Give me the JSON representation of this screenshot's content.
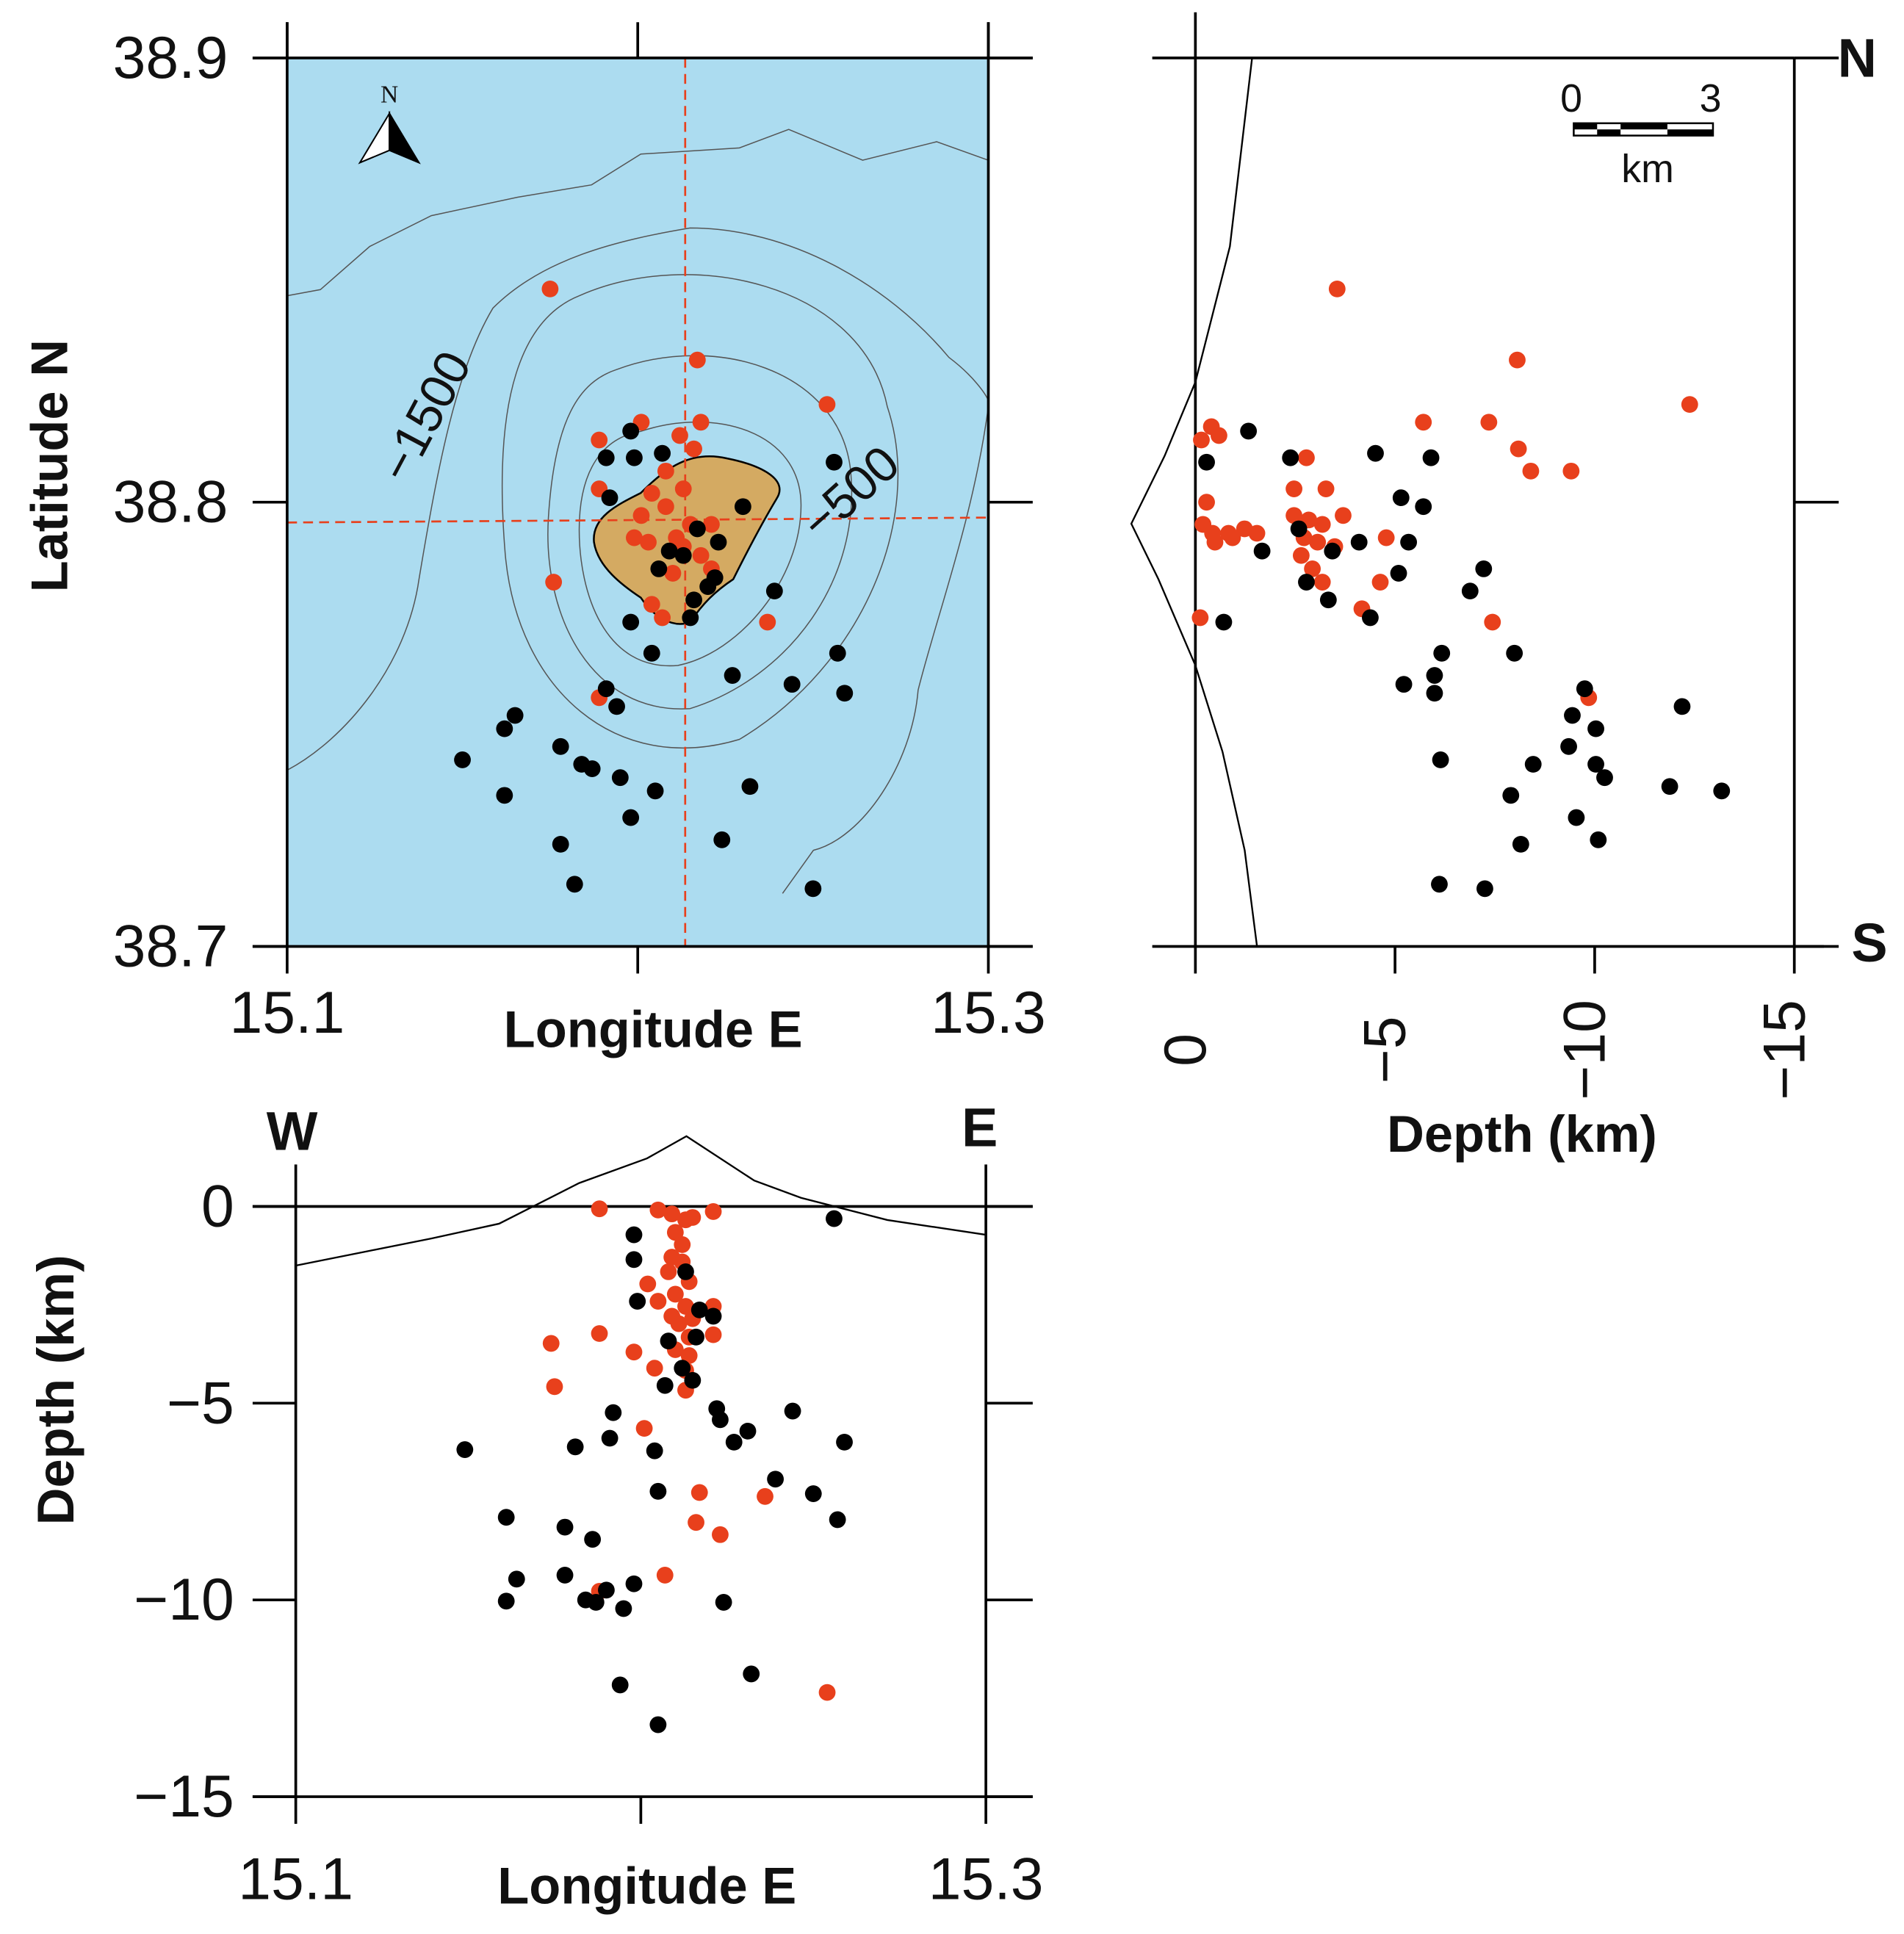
{
  "chart_data": [
    {
      "type": "scatter",
      "xlabel": "Longitude E",
      "ylabel": "Latitude N",
      "xlim": [
        15.1,
        15.3
      ],
      "ylim": [
        38.7,
        38.9
      ],
      "xticks": [
        15.1,
        {
          "value": 15.2,
          "label": null
        },
        15.3
      ],
      "yticks": [
        38.7,
        38.8,
        38.9
      ],
      "background": "#acdcf0",
      "annotations": [
        "−1500",
        "−500",
        "N"
      ],
      "series": [
        {
          "color": "#e8401c",
          "x": [
            15.175,
            15.217,
            15.254,
            15.189,
            15.201,
            15.212,
            15.216,
            15.218,
            15.208,
            15.189,
            15.204,
            15.213,
            15.208,
            15.201,
            15.215,
            15.221,
            15.211,
            15.203,
            15.199,
            15.213,
            15.218,
            15.221,
            15.21,
            15.176,
            15.204,
            15.207,
            15.237,
            15.189
          ],
          "y": [
            38.848,
            38.832,
            38.822,
            38.814,
            38.818,
            38.815,
            38.812,
            38.818,
            38.807,
            38.803,
            38.802,
            38.803,
            38.799,
            38.797,
            38.795,
            38.795,
            38.792,
            38.791,
            38.792,
            38.79,
            38.788,
            38.785,
            38.784,
            38.782,
            38.777,
            38.774,
            38.773,
            38.756
          ]
        },
        {
          "color": "#000000",
          "x": [
            15.198,
            15.191,
            15.199,
            15.207,
            15.256,
            15.192,
            15.23,
            15.217,
            15.223,
            15.209,
            15.213,
            15.206,
            15.222,
            15.22,
            15.216,
            15.215,
            15.239,
            15.198,
            15.204,
            15.257,
            15.227,
            15.244,
            15.191,
            15.259,
            15.194,
            15.165,
            15.162,
            15.178,
            15.184,
            15.187,
            15.15,
            15.195,
            15.205,
            15.232,
            15.162,
            15.198,
            15.224,
            15.178,
            15.182,
            15.25
          ],
          "y": [
            38.816,
            38.81,
            38.81,
            38.811,
            38.809,
            38.801,
            38.799,
            38.794,
            38.791,
            38.789,
            38.788,
            38.785,
            38.783,
            38.781,
            38.778,
            38.774,
            38.78,
            38.773,
            38.766,
            38.766,
            38.761,
            38.759,
            38.758,
            38.757,
            38.754,
            38.752,
            38.749,
            38.745,
            38.741,
            38.74,
            38.742,
            38.738,
            38.735,
            38.736,
            38.734,
            38.729,
            38.724,
            38.723,
            38.714,
            38.713
          ]
        }
      ]
    },
    {
      "type": "scatter",
      "xlabel": "Depth (km)",
      "xlim": [
        0,
        -15
      ],
      "ylim": [
        38.7,
        38.9
      ],
      "xticks": [
        0,
        {
          "value": -5,
          "label": "−5"
        },
        {
          "value": -10,
          "label": "−10"
        },
        {
          "value": -15,
          "label": "−15"
        }
      ],
      "yticks": [
        38.7,
        38.8,
        38.9
      ],
      "ytick_labels": false,
      "annotations": [
        "N",
        "S",
        "0",
        "3",
        "km"
      ],
      "series": [
        {
          "color": "#e8401c",
          "x": [
            -3.55,
            -8.06,
            -12.38,
            -5.71,
            -7.35,
            -0.4,
            -0.59,
            -0.15,
            -2.78,
            -8.09,
            -8.4,
            -9.41,
            -0.28,
            -2.47,
            -3.27,
            -0.19,
            -0.43,
            -0.83,
            -1.23,
            -1.54,
            -0.49,
            -0.93,
            -2.47,
            -2.84,
            -3.18,
            -3.7,
            -2.72,
            -3.06,
            -3.49,
            -4.78,
            -2.65,
            -2.93,
            -3.18,
            -4.63,
            -0.12,
            -4.17,
            -7.44,
            -9.85
          ],
          "y": [
            38.848,
            38.832,
            38.822,
            38.818,
            38.818,
            38.817,
            38.815,
            38.814,
            38.81,
            38.812,
            38.807,
            38.807,
            38.8,
            38.803,
            38.803,
            38.795,
            38.793,
            38.793,
            38.794,
            38.793,
            38.791,
            38.792,
            38.797,
            38.796,
            38.795,
            38.797,
            38.792,
            38.791,
            38.79,
            38.792,
            38.788,
            38.785,
            38.782,
            38.782,
            38.774,
            38.776,
            38.773,
            38.756
          ]
        },
        {
          "color": "#000000",
          "x": [
            -1.33,
            -0.28,
            -2.38,
            -4.51,
            -5.9,
            -5.15,
            -5.71,
            -2.59,
            -4.1,
            -5.34,
            -1.67,
            -3.43,
            -2.78,
            -3.33,
            -5.09,
            -7.22,
            -6.88,
            -4.38,
            -0.71,
            -7.99,
            -6.17,
            -5.99,
            -5.22,
            -5.99,
            -9.75,
            -12.19,
            -9.44,
            -10.03,
            -9.35,
            -8.46,
            -10.03,
            -10.25,
            -6.14,
            -11.88,
            -13.18,
            -7.9,
            -9.54,
            -10.09,
            -8.15,
            -6.11,
            -7.25
          ],
          "y": [
            38.816,
            38.809,
            38.81,
            38.811,
            38.81,
            38.801,
            38.799,
            38.794,
            38.791,
            38.791,
            38.789,
            38.789,
            38.782,
            38.778,
            38.784,
            38.785,
            38.78,
            38.774,
            38.773,
            38.766,
            38.766,
            38.761,
            38.759,
            38.757,
            38.758,
            38.754,
            38.752,
            38.749,
            38.745,
            38.741,
            38.741,
            38.738,
            38.742,
            38.736,
            38.735,
            38.734,
            38.729,
            38.724,
            38.723,
            38.714,
            38.713
          ]
        }
      ]
    },
    {
      "type": "scatter",
      "xlabel": "Longitude E",
      "ylabel": "Depth (km)",
      "xlim": [
        15.1,
        15.3
      ],
      "ylim": [
        -15,
        0
      ],
      "xticks": [
        15.1,
        {
          "value": 15.2,
          "label": null
        },
        15.3
      ],
      "yticks": [
        0,
        {
          "value": -5,
          "label": "−5"
        },
        {
          "value": -10,
          "label": "−10"
        },
        {
          "value": -15,
          "label": "−15"
        }
      ],
      "annotations": [
        "W",
        "E"
      ],
      "series": [
        {
          "color": "#e8401c",
          "x": [
            15.188,
            15.205,
            15.209,
            15.213,
            15.215,
            15.221,
            15.21,
            15.212,
            15.209,
            15.212,
            15.208,
            15.214,
            15.202,
            15.21,
            15.205,
            15.213,
            15.221,
            15.209,
            15.215,
            15.211,
            15.221,
            15.214,
            15.188,
            15.174,
            15.21,
            15.198,
            15.214,
            15.213,
            15.204,
            15.175,
            15.213,
            15.201,
            15.217,
            15.236,
            15.216,
            15.223,
            15.207,
            15.188,
            15.254
          ],
          "y": [
            -0.06,
            -0.09,
            -0.19,
            -0.34,
            -0.28,
            -0.13,
            -0.66,
            -0.97,
            -1.29,
            -1.41,
            -1.66,
            -1.91,
            -1.97,
            -2.23,
            -2.41,
            -2.54,
            -2.54,
            -2.79,
            -2.85,
            -2.98,
            -3.26,
            -3.32,
            -3.23,
            -3.48,
            -3.64,
            -3.7,
            -3.79,
            -4.17,
            -4.11,
            -4.58,
            -4.67,
            -5.64,
            -7.27,
            -7.37,
            -8.03,
            -8.34,
            -9.37,
            -9.78,
            -12.35
          ]
        },
        {
          "color": "#000000",
          "x": [
            15.256,
            15.198,
            15.198,
            15.213,
            15.199,
            15.217,
            15.221,
            15.208,
            15.216,
            15.212,
            15.215,
            15.207,
            15.222,
            15.223,
            15.192,
            15.244,
            15.231,
            15.227,
            15.259,
            15.181,
            15.191,
            15.204,
            15.149,
            15.239,
            15.25,
            15.205,
            15.161,
            15.257,
            15.178,
            15.186,
            15.164,
            15.178,
            15.198,
            15.19,
            15.184,
            15.187,
            15.161,
            15.195,
            15.224,
            15.232,
            15.194,
            15.205
          ],
          "y": [
            -0.31,
            -0.72,
            -1.35,
            -1.66,
            -2.41,
            -2.63,
            -2.79,
            -3.42,
            -3.32,
            -4.11,
            -4.42,
            -4.55,
            -5.14,
            -5.42,
            -5.24,
            -5.2,
            -5.71,
            -5.99,
            -5.99,
            -6.11,
            -5.89,
            -6.21,
            -6.18,
            -6.93,
            -7.3,
            -7.24,
            -7.9,
            -7.96,
            -8.15,
            -8.46,
            -9.47,
            -9.37,
            -9.59,
            -9.75,
            -10.0,
            -10.06,
            -10.03,
            -10.22,
            -10.06,
            -11.88,
            -12.16,
            -13.17
          ]
        }
      ]
    }
  ]
}
